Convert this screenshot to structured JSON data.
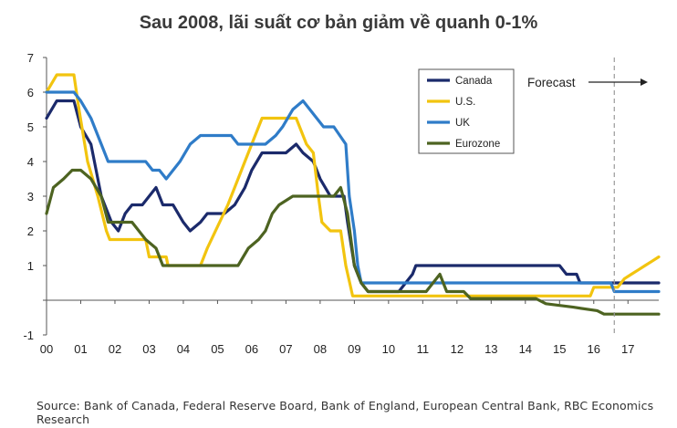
{
  "chart_data": {
    "type": "line",
    "title": "Sau 2008, lãi suất cơ bản giảm về quanh 0-1%",
    "xlabel": "",
    "ylabel": "",
    "xlim": [
      2000,
      2017.9
    ],
    "ylim": [
      -1,
      7
    ],
    "x_ticks": [
      {
        "value": 2000,
        "label": "00"
      },
      {
        "value": 2001,
        "label": "01"
      },
      {
        "value": 2002,
        "label": "02"
      },
      {
        "value": 2003,
        "label": "03"
      },
      {
        "value": 2004,
        "label": "04"
      },
      {
        "value": 2005,
        "label": "05"
      },
      {
        "value": 2006,
        "label": "06"
      },
      {
        "value": 2007,
        "label": "07"
      },
      {
        "value": 2008,
        "label": "08"
      },
      {
        "value": 2009,
        "label": "09"
      },
      {
        "value": 2010,
        "label": "10"
      },
      {
        "value": 2011,
        "label": "11"
      },
      {
        "value": 2012,
        "label": "12"
      },
      {
        "value": 2013,
        "label": "13"
      },
      {
        "value": 2014,
        "label": "14"
      },
      {
        "value": 2015,
        "label": "15"
      },
      {
        "value": 2016,
        "label": "16"
      },
      {
        "value": 2017,
        "label": "17"
      }
    ],
    "y_ticks": [
      -1,
      0,
      1,
      2,
      3,
      4,
      5,
      6,
      7
    ],
    "y_tick_labels": [
      "-1",
      "",
      "1",
      "2",
      "3",
      "4",
      "5",
      "6",
      "7"
    ],
    "grid": false,
    "legend_position": "top-right",
    "forecast": {
      "label": "Forecast",
      "start_x": 2016.6
    },
    "series": [
      {
        "name": "Canada",
        "color": "#1b2a6b",
        "points": [
          [
            2000,
            5.25
          ],
          [
            2000.3,
            5.75
          ],
          [
            2000.8,
            5.75
          ],
          [
            2001,
            5.0
          ],
          [
            2001.3,
            4.5
          ],
          [
            2001.6,
            3.0
          ],
          [
            2001.9,
            2.25
          ],
          [
            2002.1,
            2.0
          ],
          [
            2002.3,
            2.5
          ],
          [
            2002.5,
            2.75
          ],
          [
            2002.8,
            2.75
          ],
          [
            2003.2,
            3.25
          ],
          [
            2003.4,
            2.75
          ],
          [
            2003.7,
            2.75
          ],
          [
            2004.0,
            2.25
          ],
          [
            2004.2,
            2.0
          ],
          [
            2004.5,
            2.25
          ],
          [
            2004.7,
            2.5
          ],
          [
            2005.2,
            2.5
          ],
          [
            2005.5,
            2.75
          ],
          [
            2005.8,
            3.25
          ],
          [
            2006.0,
            3.75
          ],
          [
            2006.3,
            4.25
          ],
          [
            2007.0,
            4.25
          ],
          [
            2007.3,
            4.5
          ],
          [
            2007.5,
            4.25
          ],
          [
            2007.8,
            4.0
          ],
          [
            2008.0,
            3.5
          ],
          [
            2008.3,
            3.0
          ],
          [
            2008.7,
            3.0
          ],
          [
            2008.8,
            2.25
          ],
          [
            2009.0,
            1.0
          ],
          [
            2009.2,
            0.5
          ],
          [
            2009.4,
            0.25
          ],
          [
            2010.0,
            0.25
          ],
          [
            2010.3,
            0.25
          ],
          [
            2010.5,
            0.5
          ],
          [
            2010.7,
            0.75
          ],
          [
            2010.8,
            1.0
          ],
          [
            2015.0,
            1.0
          ],
          [
            2015.2,
            0.75
          ],
          [
            2015.5,
            0.75
          ],
          [
            2015.6,
            0.5
          ],
          [
            2017.9,
            0.5
          ]
        ]
      },
      {
        "name": "U.S.",
        "color": "#f2c40f",
        "points": [
          [
            2000,
            6.0
          ],
          [
            2000.3,
            6.5
          ],
          [
            2000.8,
            6.5
          ],
          [
            2000.95,
            5.5
          ],
          [
            2001.2,
            4.0
          ],
          [
            2001.5,
            3.0
          ],
          [
            2001.75,
            2.0
          ],
          [
            2001.85,
            1.75
          ],
          [
            2002.9,
            1.75
          ],
          [
            2003.0,
            1.25
          ],
          [
            2003.5,
            1.25
          ],
          [
            2003.55,
            1.0
          ],
          [
            2004.5,
            1.0
          ],
          [
            2004.7,
            1.5
          ],
          [
            2005.3,
            2.75
          ],
          [
            2005.8,
            4.0
          ],
          [
            2006.3,
            5.25
          ],
          [
            2007.3,
            5.25
          ],
          [
            2007.6,
            4.5
          ],
          [
            2007.8,
            4.25
          ],
          [
            2007.95,
            3.0
          ],
          [
            2008.05,
            2.25
          ],
          [
            2008.3,
            2.0
          ],
          [
            2008.6,
            2.0
          ],
          [
            2008.75,
            1.0
          ],
          [
            2008.95,
            0.125
          ],
          [
            2015.9,
            0.125
          ],
          [
            2016.0,
            0.375
          ],
          [
            2016.7,
            0.375
          ],
          [
            2016.9,
            0.625
          ],
          [
            2017.1,
            0.75
          ],
          [
            2017.3,
            0.875
          ],
          [
            2017.5,
            1.0
          ],
          [
            2017.7,
            1.125
          ],
          [
            2017.9,
            1.25
          ]
        ]
      },
      {
        "name": "UK",
        "color": "#2f7cc8",
        "points": [
          [
            2000,
            6.0
          ],
          [
            2000.8,
            6.0
          ],
          [
            2001.0,
            5.75
          ],
          [
            2001.3,
            5.25
          ],
          [
            2001.6,
            4.5
          ],
          [
            2001.8,
            4.0
          ],
          [
            2002.9,
            4.0
          ],
          [
            2003.1,
            3.75
          ],
          [
            2003.3,
            3.75
          ],
          [
            2003.5,
            3.5
          ],
          [
            2003.9,
            4.0
          ],
          [
            2004.2,
            4.5
          ],
          [
            2004.5,
            4.75
          ],
          [
            2005.4,
            4.75
          ],
          [
            2005.6,
            4.5
          ],
          [
            2006.4,
            4.5
          ],
          [
            2006.7,
            4.75
          ],
          [
            2006.9,
            5.0
          ],
          [
            2007.2,
            5.5
          ],
          [
            2007.5,
            5.75
          ],
          [
            2007.7,
            5.5
          ],
          [
            2007.9,
            5.25
          ],
          [
            2008.1,
            5.0
          ],
          [
            2008.4,
            5.0
          ],
          [
            2008.75,
            4.5
          ],
          [
            2008.85,
            3.0
          ],
          [
            2009.0,
            2.0
          ],
          [
            2009.1,
            1.0
          ],
          [
            2009.2,
            0.5
          ],
          [
            2016.5,
            0.5
          ],
          [
            2016.6,
            0.25
          ],
          [
            2017.9,
            0.25
          ]
        ]
      },
      {
        "name": "Eurozone",
        "color": "#4d6321",
        "points": [
          [
            2000,
            2.5
          ],
          [
            2000.2,
            3.25
          ],
          [
            2000.5,
            3.5
          ],
          [
            2000.75,
            3.75
          ],
          [
            2001.0,
            3.75
          ],
          [
            2001.3,
            3.5
          ],
          [
            2001.6,
            3.0
          ],
          [
            2001.8,
            2.25
          ],
          [
            2002.2,
            2.25
          ],
          [
            2002.5,
            2.25
          ],
          [
            2002.9,
            1.75
          ],
          [
            2003.2,
            1.5
          ],
          [
            2003.4,
            1.0
          ],
          [
            2005.6,
            1.0
          ],
          [
            2005.9,
            1.5
          ],
          [
            2006.2,
            1.75
          ],
          [
            2006.4,
            2.0
          ],
          [
            2006.6,
            2.5
          ],
          [
            2006.8,
            2.75
          ],
          [
            2007.2,
            3.0
          ],
          [
            2008.4,
            3.0
          ],
          [
            2008.6,
            3.25
          ],
          [
            2008.8,
            2.5
          ],
          [
            2009.0,
            1.0
          ],
          [
            2009.2,
            0.5
          ],
          [
            2009.4,
            0.25
          ],
          [
            2011.1,
            0.25
          ],
          [
            2011.3,
            0.5
          ],
          [
            2011.5,
            0.75
          ],
          [
            2011.7,
            0.25
          ],
          [
            2012.2,
            0.25
          ],
          [
            2012.4,
            0.05
          ],
          [
            2014.3,
            0.05
          ],
          [
            2014.6,
            -0.1
          ],
          [
            2015.4,
            -0.2
          ],
          [
            2016.1,
            -0.3
          ],
          [
            2016.3,
            -0.4
          ],
          [
            2017.9,
            -0.4
          ]
        ]
      }
    ]
  },
  "source": "Source: Bank of Canada, Federal Reserve Board, Bank of England, European Central Bank, RBC Economics Research"
}
